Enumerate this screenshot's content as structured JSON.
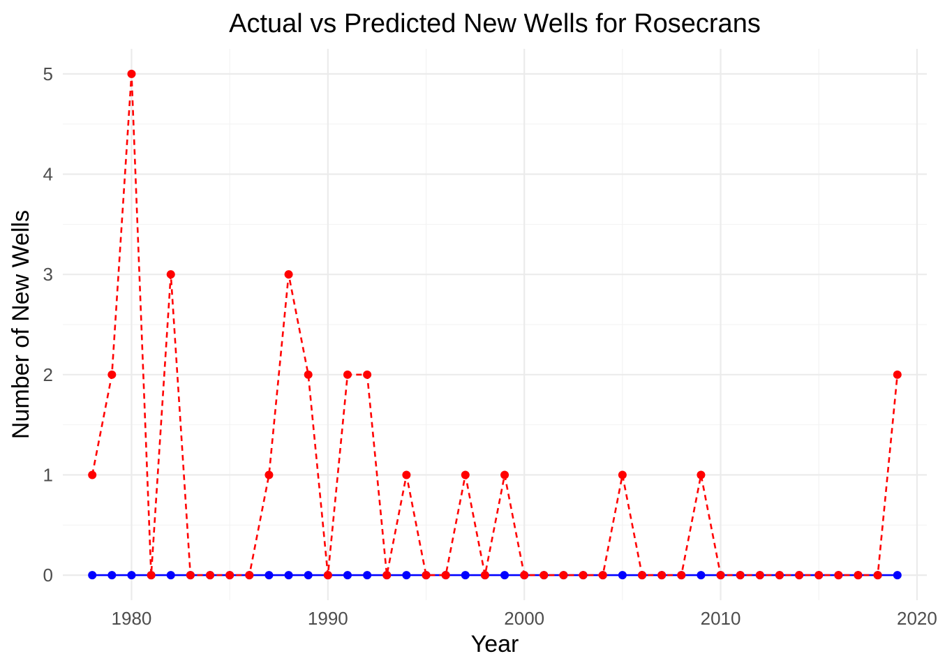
{
  "chart_data": {
    "type": "line",
    "title": "Actual vs Predicted New Wells for Rosecrans",
    "xlabel": "Year",
    "ylabel": "Number of New Wells",
    "xlim": [
      1976.5,
      2020.5
    ],
    "ylim": [
      -0.25,
      5.25
    ],
    "x_ticks": [
      1980,
      1990,
      2000,
      2010,
      2020
    ],
    "y_ticks": [
      0,
      1,
      2,
      3,
      4,
      5
    ],
    "grid": true,
    "legend": "none",
    "x": [
      1978,
      1979,
      1980,
      1981,
      1982,
      1983,
      1984,
      1985,
      1986,
      1987,
      1988,
      1989,
      1990,
      1991,
      1992,
      1993,
      1994,
      1995,
      1996,
      1997,
      1998,
      1999,
      2000,
      2001,
      2002,
      2003,
      2004,
      2005,
      2006,
      2007,
      2008,
      2009,
      2010,
      2011,
      2012,
      2013,
      2014,
      2015,
      2016,
      2017,
      2018,
      2019
    ],
    "series": [
      {
        "color": "#0000ff",
        "line_style": "solid",
        "values": [
          0,
          0,
          0,
          0,
          0,
          0,
          0,
          0,
          0,
          0,
          0,
          0,
          0,
          0,
          0,
          0,
          0,
          0,
          0,
          0,
          0,
          0,
          0,
          0,
          0,
          0,
          0,
          0,
          0,
          0,
          0,
          0,
          0,
          0,
          0,
          0,
          0,
          0,
          0,
          0,
          0,
          0
        ]
      },
      {
        "color": "#ff0000",
        "line_style": "dashed",
        "values": [
          1,
          2,
          5,
          0,
          3,
          0,
          0,
          0,
          0,
          1,
          3,
          2,
          0,
          2,
          2,
          0,
          1,
          0,
          0,
          1,
          0,
          1,
          0,
          0,
          0,
          0,
          0,
          1,
          0,
          0,
          0,
          1,
          0,
          0,
          0,
          0,
          0,
          0,
          0,
          0,
          0,
          2
        ]
      }
    ]
  }
}
